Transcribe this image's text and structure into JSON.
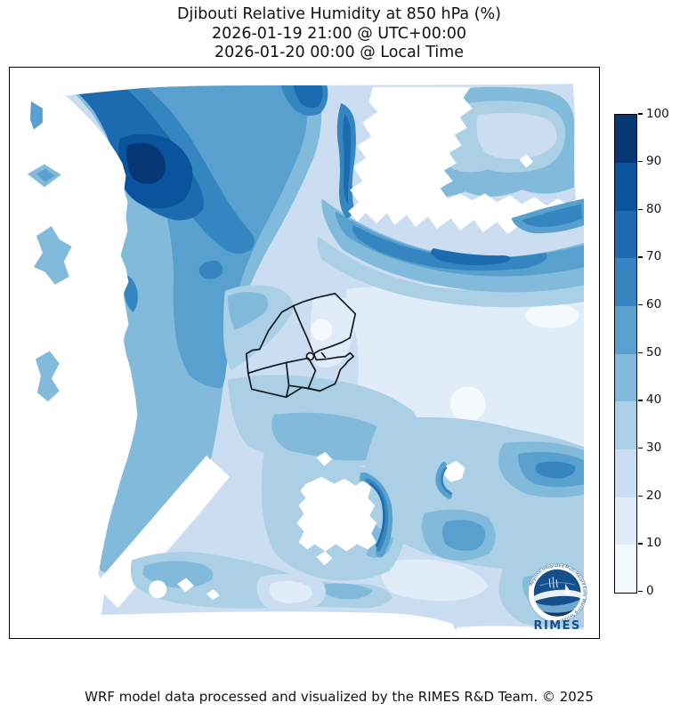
{
  "title": {
    "line1": "Djibouti Relative Humidity at 850 hPa (%)",
    "line2": "2026-01-19 21:00 @ UTC+00:00",
    "line3": "2026-01-20 00:00 @ Local Time"
  },
  "caption": "WRF model data processed and visualized by the RIMES R&D Team. © 2025",
  "logo": {
    "name": "RIMES",
    "ring_text": "Regional Integrated Multi-Hazard Early Warning System"
  },
  "chart_data": {
    "type": "heatmap",
    "subtype": "filled-contour-map",
    "variable": "Relative Humidity",
    "pressure_level": "850 hPa",
    "units": "%",
    "region": "Djibouti and surrounding area",
    "valid_time_utc": "2026-01-19 21:00 @ UTC+00:00",
    "valid_time_local": "2026-01-20 00:00 @ Local Time",
    "overlay": "Djibouti national and regional administrative boundaries (black)",
    "colorbar": {
      "orientation": "vertical",
      "position": "right",
      "ticks": [
        0,
        10,
        20,
        30,
        40,
        50,
        60,
        70,
        80,
        90,
        100
      ]
    },
    "levels": [
      0,
      10,
      20,
      30,
      40,
      50,
      60,
      70,
      80,
      90,
      100
    ],
    "colors": [
      "#f4f9fe",
      "#e0ecf8",
      "#cbdef1",
      "#abd0e6",
      "#82badb",
      "#58a1cf",
      "#3585c0",
      "#1c6ab0",
      "#0a549e",
      "#083776"
    ],
    "masked_color": "#ffffff",
    "features": [
      "Broad moist band (50-90%) across the northwest quadrant with darkest core (80-95%) near the upper-left",
      "White masked areas along the western edge, top-center, lower-left and margins",
      "Small isolated moist patches inside the white western band",
      "East-west dark band (60-85%) south of the top-center masked blob",
      "Light plume (20-40%) over the northeast corner",
      "Very dry pale zone (5-20%) east of Djibouti with spots below 10%",
      "Moderate patches (40-70%) in the southeast and along the bottom arc",
      "White hole with dark rim south of the Djibouti border"
    ]
  }
}
